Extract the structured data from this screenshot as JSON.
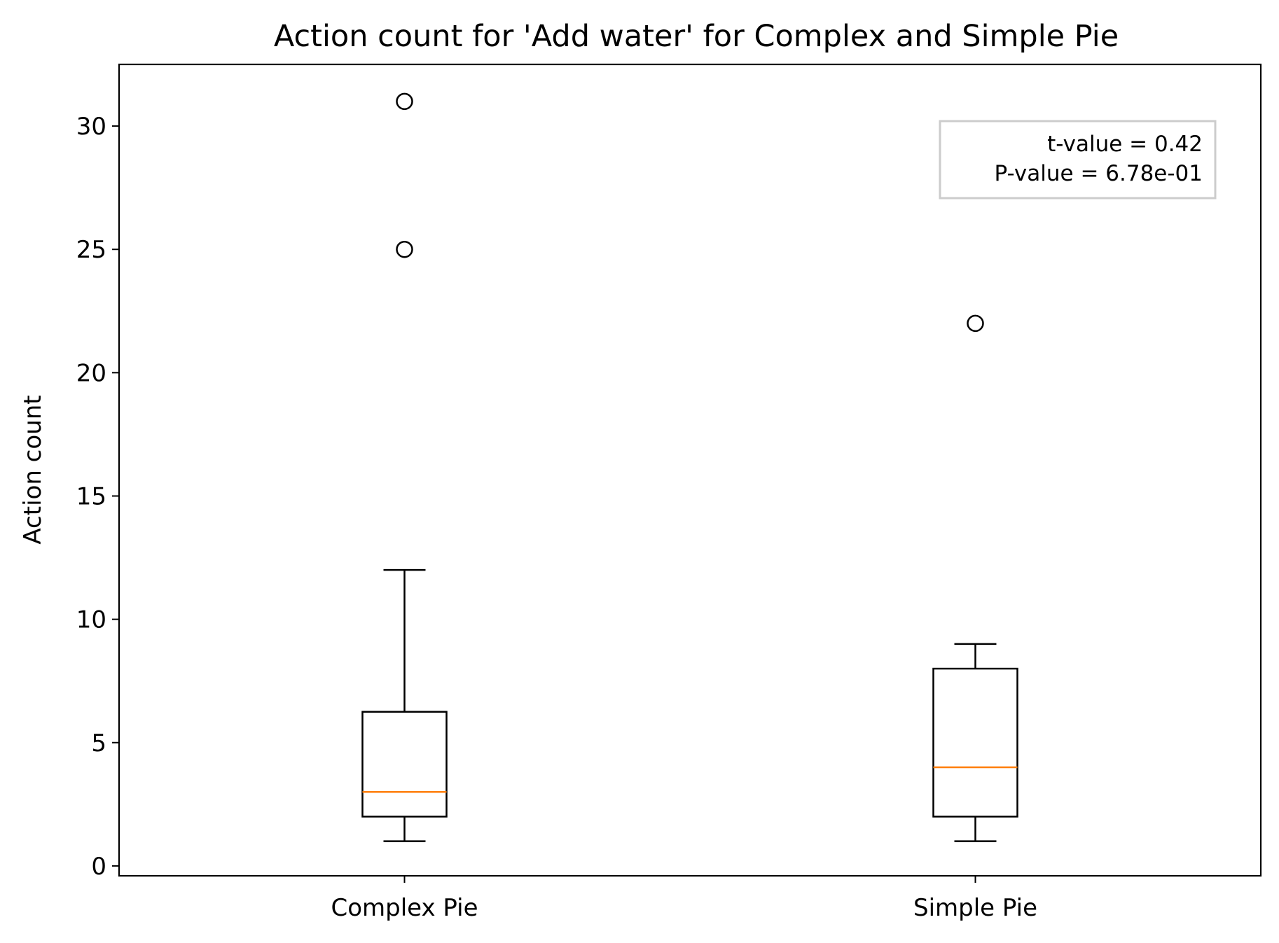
{
  "chart_data": {
    "type": "box",
    "title": "Action count for 'Add water' for Complex and Simple Pie",
    "xlabel": "",
    "ylabel": "Action count",
    "ylim": [
      -0.4,
      32.5
    ],
    "yticks": [
      0,
      5,
      10,
      15,
      20,
      25,
      30
    ],
    "categories": [
      "Complex Pie",
      "Simple Pie"
    ],
    "boxes": [
      {
        "name": "Complex Pie",
        "whisker_low": 1,
        "q1": 2,
        "median": 3,
        "q3": 6.25,
        "whisker_high": 12,
        "outliers": [
          25,
          31
        ]
      },
      {
        "name": "Simple Pie",
        "whisker_low": 1,
        "q1": 2,
        "median": 4,
        "q3": 8,
        "whisker_high": 9,
        "outliers": [
          22
        ]
      }
    ],
    "annotation": [
      "t-value = 0.42",
      "P-value = 6.78e-01"
    ],
    "annotation_placement": "top-right",
    "median_color": "#ff7f0e",
    "box_color": "#000000",
    "grid": false
  }
}
